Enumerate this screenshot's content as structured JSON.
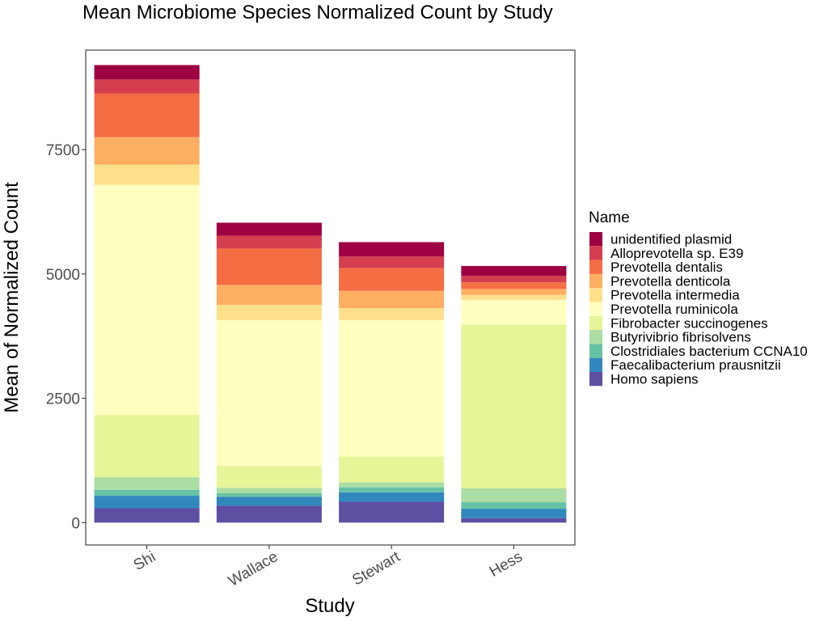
{
  "chart_data": {
    "type": "bar",
    "stacked": true,
    "title": "Mean Microbiome Species Normalized Count by Study",
    "xlabel": "Study",
    "ylabel": "Mean of Normalized Count",
    "categories": [
      "Shi",
      "Wallace",
      "Stewart",
      "Hess"
    ],
    "ylim": [
      -450,
      9500
    ],
    "yticks": [
      0,
      2500,
      5000,
      7500
    ],
    "ytick_labels": [
      "0",
      "2500",
      "5000",
      "7500"
    ],
    "grid": false,
    "legend_title": "Name",
    "legend_position": "right",
    "series": [
      {
        "name": "Homo sapiens",
        "color": "#5e4fa2",
        "values": [
          290,
          340,
          420,
          90
        ]
      },
      {
        "name": "Faecalibacterium prausnitzii",
        "color": "#3288bd",
        "values": [
          250,
          180,
          190,
          190
        ]
      },
      {
        "name": "Clostridiales bacterium CCNA10",
        "color": "#66c2a5",
        "values": [
          120,
          70,
          100,
          130
        ]
      },
      {
        "name": "Butyrivibrio fibrisolvens",
        "color": "#abdda4",
        "values": [
          250,
          110,
          100,
          280
        ]
      },
      {
        "name": "Fibrobacter succinogenes",
        "color": "#e6f598",
        "values": [
          1250,
          440,
          520,
          3290
        ]
      },
      {
        "name": "Prevotella ruminicola",
        "color": "#ffffbf",
        "values": [
          4630,
          2930,
          2740,
          500
        ]
      },
      {
        "name": "Prevotella intermedia",
        "color": "#fee08b",
        "values": [
          410,
          310,
          240,
          100
        ]
      },
      {
        "name": "Prevotella denticola",
        "color": "#fdae61",
        "values": [
          550,
          400,
          350,
          120
        ]
      },
      {
        "name": "Prevotella dentalis",
        "color": "#f46d43",
        "values": [
          880,
          730,
          460,
          130
        ]
      },
      {
        "name": "Alloprevotella sp. E39",
        "color": "#d53e4f",
        "values": [
          280,
          260,
          230,
          130
        ]
      },
      {
        "name": "unidentified plasmid",
        "color": "#9e0142",
        "values": [
          290,
          260,
          290,
          200
        ]
      }
    ]
  }
}
